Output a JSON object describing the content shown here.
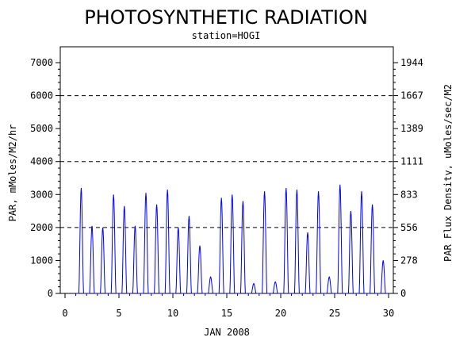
{
  "chart_data": {
    "type": "line",
    "title": "PHOTOSYNTHETIC RADIATION",
    "subtitle": "station=HOGI",
    "xlabel": "JAN 2008",
    "ylabel": "PAR, mMoles/M2/hr",
    "ylabel_right": "PAR Flux Density, uMoles/sec/M2",
    "xlim": [
      0,
      30
    ],
    "ylim": [
      0,
      7000
    ],
    "x_ticks": [
      "0",
      "5",
      "10",
      "15",
      "20",
      "25",
      "30"
    ],
    "y_ticks": [
      "0",
      "1000",
      "2000",
      "3000",
      "4000",
      "5000",
      "6000",
      "7000"
    ],
    "y_ticks_right": [
      "0",
      "278",
      "556",
      "833",
      "1111",
      "1389",
      "1667",
      "1944"
    ],
    "reference_lines": [
      2000,
      4000,
      6000
    ],
    "line_color": "#0000ff",
    "grid": false,
    "series": [
      {
        "daily_peaks": [
          {
            "day": 1,
            "peak": 3200
          },
          {
            "day": 2,
            "peak": 2050
          },
          {
            "day": 3,
            "peak": 2000
          },
          {
            "day": 4,
            "peak": 3000
          },
          {
            "day": 5,
            "peak": 2650
          },
          {
            "day": 6,
            "peak": 2050
          },
          {
            "day": 7,
            "peak": 3050
          },
          {
            "day": 8,
            "peak": 2700
          },
          {
            "day": 9,
            "peak": 3150
          },
          {
            "day": 10,
            "peak": 2000
          },
          {
            "day": 11,
            "peak": 2350
          },
          {
            "day": 12,
            "peak": 1450
          },
          {
            "day": 13,
            "peak": 500
          },
          {
            "day": 14,
            "peak": 2900
          },
          {
            "day": 15,
            "peak": 3000
          },
          {
            "day": 16,
            "peak": 2800
          },
          {
            "day": 17,
            "peak": 300
          },
          {
            "day": 18,
            "peak": 3100
          },
          {
            "day": 19,
            "peak": 350
          },
          {
            "day": 20,
            "peak": 3200
          },
          {
            "day": 21,
            "peak": 3150
          },
          {
            "day": 22,
            "peak": 1850
          },
          {
            "day": 23,
            "peak": 3100
          },
          {
            "day": 24,
            "peak": 500
          },
          {
            "day": 25,
            "peak": 3300
          },
          {
            "day": 26,
            "peak": 2500
          },
          {
            "day": 27,
            "peak": 3100
          },
          {
            "day": 28,
            "peak": 2700
          },
          {
            "day": 29,
            "peak": 1000
          }
        ]
      }
    ]
  }
}
